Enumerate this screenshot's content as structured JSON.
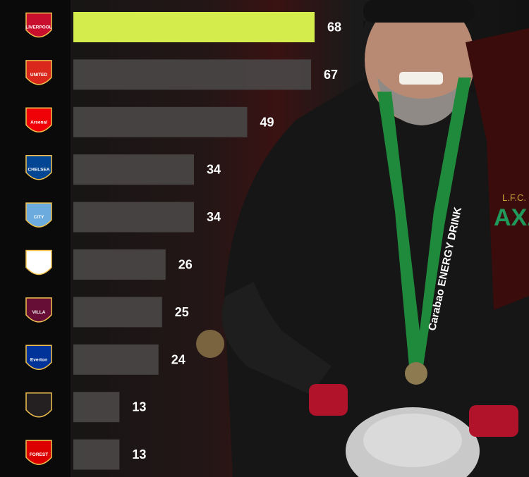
{
  "chart_data": {
    "type": "bar",
    "orientation": "horizontal",
    "categories": [
      "Liverpool",
      "Manchester United",
      "Arsenal",
      "Chelsea",
      "Manchester City",
      "Tottenham Hotspur",
      "Aston Villa",
      "Everton",
      "Newcastle United",
      "Nottingham Forest"
    ],
    "values": [
      68,
      67,
      49,
      34,
      34,
      26,
      25,
      24,
      13,
      13
    ],
    "value_labels": [
      "68",
      "67",
      "49",
      "34",
      "34",
      "26",
      "25",
      "24",
      "13",
      "13"
    ],
    "logo_text": [
      "LIVERPOOL",
      "UNITED",
      "Arsenal",
      "CHELSEA",
      "CITY",
      "",
      "VILLA",
      "Everton",
      "",
      "FOREST"
    ],
    "logo_icons": [
      "liverbird-crest-icon",
      "devil-crest-icon",
      "cannon-crest-icon",
      "lion-crest-icon",
      "ship-crest-icon",
      "cockerel-crest-icon",
      "lion-crest-icon",
      "tower-crest-icon",
      "castle-crest-icon",
      "tree-crest-icon"
    ],
    "logo_colors": [
      "#c8102e",
      "#da291c",
      "#ef0107",
      "#034694",
      "#6cabdd",
      "#ffffff",
      "#670e36",
      "#003399",
      "#241f20",
      "#dd0000"
    ],
    "xlim": [
      0,
      68
    ],
    "highlight_color": "#d4ec4c",
    "bar_color": "#4a4646",
    "label_color": "#ffffff"
  },
  "photo": {
    "banner_text": "Carabao ENERGY DRINK",
    "shirt_text": "AXA",
    "club_text": "L.F.C."
  }
}
